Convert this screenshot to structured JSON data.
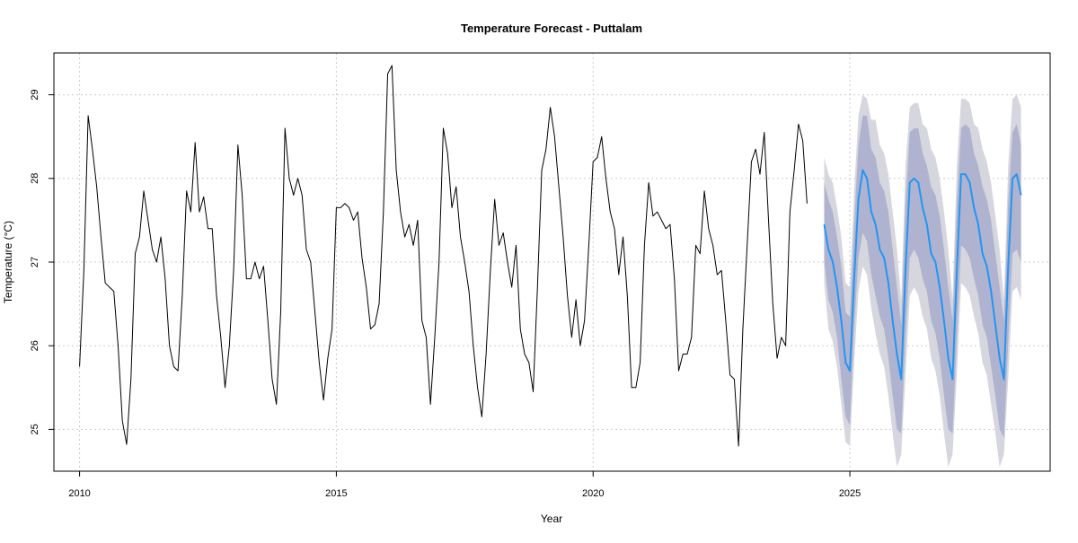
{
  "chart_data": {
    "type": "line",
    "title": "Temperature Forecast - Puttalam",
    "xlabel": "Year",
    "ylabel": "Temperature (°C)",
    "xlim": [
      2009.5,
      2028.9
    ],
    "ylim": [
      24.5,
      29.5
    ],
    "x_ticks": [
      2010,
      2015,
      2020,
      2025
    ],
    "y_ticks": [
      25,
      26,
      27,
      28,
      29
    ],
    "grid": true,
    "colors": {
      "observed": "#000000",
      "forecast": "#2196F3",
      "band_80": "#b0b3cf",
      "band_95": "#d6d6de",
      "grid": "#cccccc"
    },
    "series": [
      {
        "x_start": 2010.0,
        "x_step": 0.08333,
        "values": [
          25.75,
          26.9,
          28.75,
          28.35,
          27.9,
          27.3,
          26.75,
          26.7,
          26.65,
          26.0,
          25.1,
          24.82,
          25.6,
          27.1,
          27.3,
          27.85,
          27.5,
          27.15,
          27.0,
          27.3,
          26.8,
          26.0,
          25.75,
          25.7,
          26.6,
          27.85,
          27.6,
          28.43,
          27.6,
          27.78,
          27.4,
          27.4,
          26.6,
          26.1,
          25.5,
          26.0,
          26.9,
          28.4,
          27.8,
          26.8,
          26.8,
          27.0,
          26.8,
          26.95,
          26.3,
          25.6,
          25.3,
          26.4,
          28.6,
          28.0,
          27.8,
          28.0,
          27.8,
          27.15,
          27.0,
          26.4,
          25.8,
          25.35,
          25.85,
          26.2,
          27.65,
          27.65,
          27.7,
          27.65,
          27.5,
          27.6,
          27.05,
          26.7,
          26.2,
          26.25,
          26.5,
          27.6,
          29.25,
          29.35,
          28.1,
          27.6,
          27.3,
          27.45,
          27.2,
          27.5,
          26.3,
          26.1,
          25.3,
          26.1,
          27.0,
          28.6,
          28.3,
          27.65,
          27.9,
          27.3,
          27.0,
          26.65,
          26.0,
          25.5,
          25.15,
          25.9,
          26.9,
          27.75,
          27.2,
          27.35,
          27.0,
          26.7,
          27.2,
          26.2,
          25.9,
          25.8,
          25.45,
          26.7,
          28.1,
          28.35,
          28.85,
          28.5,
          27.9,
          27.3,
          26.6,
          26.1,
          26.55,
          26.0,
          26.3,
          27.2,
          28.2,
          28.25,
          28.5,
          28.0,
          27.6,
          27.4,
          26.85,
          27.3,
          26.6,
          25.5,
          25.5,
          25.8,
          27.2,
          27.95,
          27.55,
          27.6,
          27.5,
          27.4,
          27.45,
          26.8,
          25.7,
          25.9,
          25.9,
          26.1,
          27.2,
          27.1,
          27.85,
          27.4,
          27.2,
          26.85,
          26.9,
          26.3,
          25.65,
          25.6,
          24.8,
          26.2,
          27.2,
          28.2,
          28.35,
          28.05,
          28.55,
          27.5,
          26.5,
          25.85,
          26.1,
          26.0,
          27.6,
          28.1,
          28.65,
          28.45,
          27.7
        ]
      },
      {
        "x_start": 2024.5,
        "x_step": 0.08333,
        "values": [
          27.45,
          27.15,
          27.0,
          26.7,
          26.3,
          25.8,
          25.7,
          26.8,
          27.75,
          28.1,
          28.0,
          27.6,
          27.45,
          27.15,
          27.05,
          26.75,
          26.3,
          25.9,
          25.6,
          26.9,
          27.95,
          28.0,
          27.95,
          27.65,
          27.45,
          27.1,
          27.0,
          26.7,
          26.3,
          25.85,
          25.6,
          26.9,
          28.05,
          28.05,
          27.95,
          27.65,
          27.45,
          27.1,
          26.95,
          26.65,
          26.25,
          25.85,
          25.6,
          26.95,
          28.0,
          28.05,
          27.8
        ],
        "lo80": [
          27.0,
          26.55,
          26.4,
          26.1,
          25.6,
          25.15,
          25.05,
          26.2,
          27.05,
          27.35,
          27.25,
          26.85,
          26.6,
          26.35,
          26.2,
          25.85,
          25.4,
          25.0,
          24.95,
          26.1,
          27.05,
          27.15,
          27.05,
          26.8,
          26.65,
          26.3,
          26.15,
          25.85,
          25.4,
          25.0,
          24.95,
          26.1,
          27.2,
          27.15,
          27.05,
          26.8,
          26.6,
          26.25,
          26.1,
          25.75,
          25.4,
          25.0,
          24.9,
          26.05,
          27.1,
          27.15,
          27.0
        ],
        "hi80": [
          27.95,
          27.75,
          27.6,
          27.3,
          26.95,
          26.4,
          26.35,
          27.45,
          28.4,
          28.75,
          28.75,
          28.35,
          28.25,
          27.95,
          27.85,
          27.6,
          27.15,
          26.7,
          26.25,
          27.7,
          28.55,
          28.6,
          28.6,
          28.3,
          28.15,
          27.9,
          27.8,
          27.55,
          27.15,
          26.7,
          26.3,
          27.7,
          28.6,
          28.65,
          28.6,
          28.3,
          28.15,
          27.9,
          27.75,
          27.5,
          27.1,
          26.7,
          26.3,
          27.7,
          28.55,
          28.65,
          28.4
        ],
        "lo95": [
          26.75,
          26.2,
          26.05,
          25.75,
          25.3,
          24.85,
          24.8,
          25.8,
          26.65,
          26.95,
          26.85,
          26.45,
          26.15,
          25.9,
          25.75,
          25.4,
          24.95,
          24.55,
          24.7,
          25.65,
          26.6,
          26.7,
          26.6,
          26.35,
          26.2,
          25.85,
          25.7,
          25.4,
          24.95,
          24.55,
          24.7,
          25.65,
          26.75,
          26.7,
          26.6,
          26.35,
          26.15,
          25.8,
          25.65,
          25.3,
          24.95,
          24.55,
          24.7,
          25.6,
          26.65,
          26.7,
          26.55
        ],
        "hi95": [
          28.25,
          28.05,
          27.95,
          27.65,
          27.3,
          26.75,
          26.7,
          27.85,
          28.75,
          29.0,
          28.95,
          28.7,
          28.7,
          28.4,
          28.3,
          28.05,
          27.6,
          27.15,
          26.55,
          28.15,
          28.85,
          28.9,
          28.9,
          28.65,
          28.6,
          28.35,
          28.25,
          28.0,
          27.6,
          27.15,
          26.55,
          28.15,
          28.95,
          28.95,
          28.9,
          28.65,
          28.6,
          28.35,
          28.2,
          27.95,
          27.55,
          27.15,
          26.55,
          28.15,
          28.95,
          29.0,
          28.85
        ]
      }
    ]
  }
}
